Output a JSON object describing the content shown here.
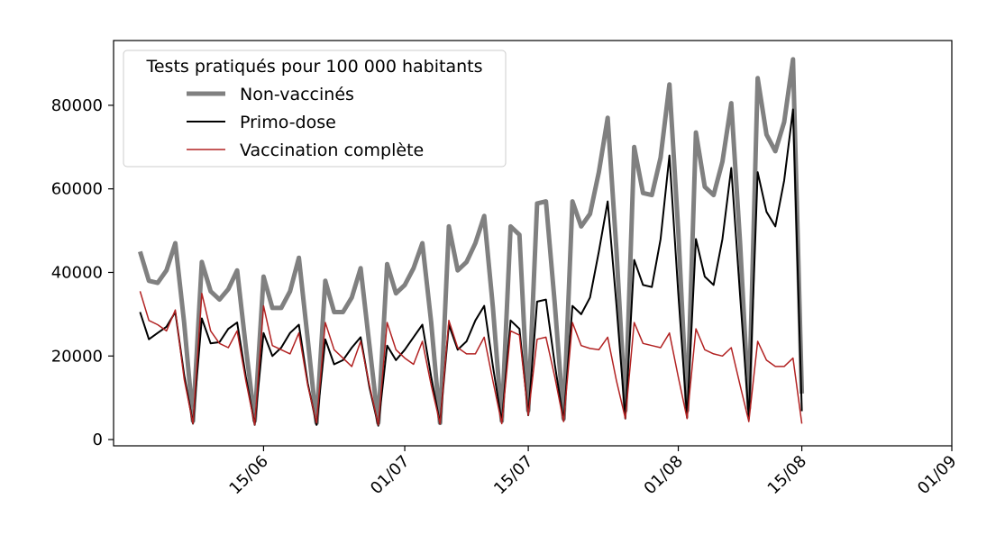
{
  "chart_data": {
    "type": "line",
    "title": "",
    "xlabel": "",
    "ylabel": "",
    "x_axis": {
      "type": "date",
      "tick_labels": [
        "15/06",
        "01/07",
        "15/07",
        "01/08",
        "15/08",
        "01/09"
      ],
      "tick_dates": [
        "2021-06-15",
        "2021-07-01",
        "2021-07-15",
        "2021-08-01",
        "2021-08-15",
        "2021-09-01"
      ],
      "range": [
        "2021-05-29",
        "2021-09-01"
      ]
    },
    "y_axis": {
      "tick_labels": [
        "0",
        "20000",
        "40000",
        "60000",
        "80000"
      ],
      "ticks": [
        0,
        20000,
        40000,
        60000,
        80000
      ],
      "range": [
        -1500,
        95500
      ]
    },
    "grid": false,
    "legend": {
      "title": "Tests pratiqués pour 100 000 habitants",
      "placement": "top-left"
    },
    "x": [
      "2021-06-01",
      "2021-06-02",
      "2021-06-03",
      "2021-06-04",
      "2021-06-05",
      "2021-06-06",
      "2021-06-07",
      "2021-06-08",
      "2021-06-09",
      "2021-06-10",
      "2021-06-11",
      "2021-06-12",
      "2021-06-13",
      "2021-06-14",
      "2021-06-15",
      "2021-06-16",
      "2021-06-17",
      "2021-06-18",
      "2021-06-19",
      "2021-06-20",
      "2021-06-21",
      "2021-06-22",
      "2021-06-23",
      "2021-06-24",
      "2021-06-25",
      "2021-06-26",
      "2021-06-27",
      "2021-06-28",
      "2021-06-29",
      "2021-06-30",
      "2021-07-01",
      "2021-07-02",
      "2021-07-03",
      "2021-07-04",
      "2021-07-05",
      "2021-07-06",
      "2021-07-07",
      "2021-07-08",
      "2021-07-09",
      "2021-07-10",
      "2021-07-11",
      "2021-07-12",
      "2021-07-13",
      "2021-07-14",
      "2021-07-15",
      "2021-07-16",
      "2021-07-17",
      "2021-07-18",
      "2021-07-19",
      "2021-07-20",
      "2021-07-21",
      "2021-07-22",
      "2021-07-23",
      "2021-07-24",
      "2021-07-25",
      "2021-07-26",
      "2021-07-27",
      "2021-07-28",
      "2021-07-29",
      "2021-07-30",
      "2021-07-31",
      "2021-08-01",
      "2021-08-02",
      "2021-08-03",
      "2021-08-04",
      "2021-08-05",
      "2021-08-06",
      "2021-08-07",
      "2021-08-08",
      "2021-08-09",
      "2021-08-10",
      "2021-08-11",
      "2021-08-12",
      "2021-08-13",
      "2021-08-14",
      "2021-08-15"
    ],
    "series": [
      {
        "name": "Non-vaccinés",
        "color": "#808080",
        "line_width": 5,
        "values": [
          45000,
          38000,
          37500,
          40500,
          47000,
          28000,
          4500,
          42500,
          35500,
          33500,
          36000,
          40500,
          22000,
          4500,
          39000,
          31500,
          31500,
          35500,
          43500,
          24000,
          4000,
          38000,
          30500,
          30500,
          34000,
          41000,
          22500,
          4000,
          42000,
          35000,
          37000,
          41000,
          47000,
          28000,
          4000,
          51000,
          40500,
          42500,
          47000,
          53500,
          31500,
          4500,
          51000,
          49000,
          7000,
          56500,
          57000,
          32500,
          5000,
          57000,
          51000,
          54000,
          64000,
          77000,
          45000,
          7000,
          70000,
          59000,
          58500,
          67500,
          85000,
          50000,
          7000,
          73500,
          60500,
          58500,
          66500,
          80500,
          47000,
          7500,
          86500,
          73000,
          69000,
          76000,
          91000,
          11000
        ]
      },
      {
        "name": "Primo-dose",
        "color": "#000000",
        "line_width": 2,
        "values": [
          30500,
          24000,
          25500,
          27000,
          30500,
          15500,
          3800,
          29000,
          23000,
          23300,
          26500,
          28000,
          15000,
          3500,
          25500,
          20000,
          22000,
          25500,
          27500,
          13500,
          3500,
          24000,
          18000,
          19000,
          22000,
          24500,
          12500,
          3300,
          22500,
          19000,
          21500,
          24500,
          27500,
          15000,
          3800,
          27500,
          21500,
          23500,
          28500,
          32000,
          17500,
          4200,
          28500,
          26500,
          5800,
          33000,
          33500,
          18000,
          4500,
          32000,
          30000,
          34000,
          45000,
          57000,
          32000,
          5000,
          43000,
          37000,
          36500,
          48000,
          68000,
          35000,
          5200,
          48000,
          39000,
          37000,
          48000,
          65000,
          34500,
          5000,
          64000,
          54500,
          51000,
          62000,
          79000,
          6800
        ]
      },
      {
        "name": "Vaccination complète",
        "color": "#b22222",
        "line_width": 1.5,
        "values": [
          35500,
          28500,
          27500,
          26000,
          31000,
          14500,
          3800,
          35000,
          26000,
          23000,
          22000,
          26000,
          14000,
          3500,
          32000,
          22500,
          21500,
          20500,
          25500,
          13000,
          4000,
          28000,
          21500,
          19500,
          17500,
          23500,
          13000,
          3500,
          28000,
          21500,
          19500,
          18000,
          23500,
          13000,
          3800,
          28500,
          22000,
          20500,
          20500,
          24500,
          14000,
          3800,
          26000,
          25000,
          5800,
          24000,
          24500,
          15000,
          4300,
          28000,
          22500,
          21800,
          21500,
          24500,
          14000,
          5000,
          28000,
          23000,
          22500,
          22000,
          25500,
          15000,
          5000,
          26500,
          21500,
          20500,
          20000,
          22000,
          13000,
          4300,
          23500,
          19000,
          17500,
          17500,
          19500,
          3800
        ]
      }
    ]
  }
}
